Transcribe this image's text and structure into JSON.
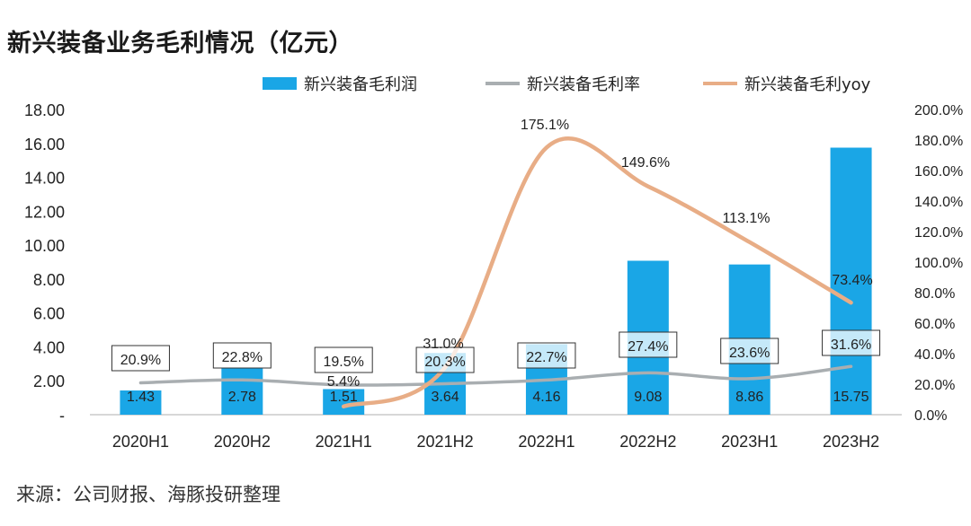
{
  "title": "新兴装备业务毛利情况（亿元）",
  "source": "来源：公司财报、海豚投研整理",
  "colors": {
    "bar": "#1aa6e6",
    "margin_line": "#a9aeb1",
    "yoy_line": "#e8ad86"
  },
  "chart_data": {
    "type": "bar",
    "categories": [
      "2020H1",
      "2020H2",
      "2021H1",
      "2021H2",
      "2022H1",
      "2022H2",
      "2023H1",
      "2023H2"
    ],
    "y_left": {
      "ylim": [
        0,
        18
      ],
      "ticks": [
        "-",
        "2.00",
        "4.00",
        "6.00",
        "8.00",
        "10.00",
        "12.00",
        "14.00",
        "16.00",
        "18.00"
      ]
    },
    "y_right": {
      "ylim": [
        0,
        200
      ],
      "ticks": [
        "0.0%",
        "20.0%",
        "40.0%",
        "60.0%",
        "80.0%",
        "100.0%",
        "120.0%",
        "140.0%",
        "160.0%",
        "180.0%",
        "200.0%"
      ]
    },
    "series": [
      {
        "name": "新兴装备毛利润",
        "kind": "bar",
        "axis": "left",
        "values": [
          1.43,
          2.78,
          1.51,
          3.64,
          4.16,
          9.08,
          8.86,
          15.75
        ],
        "labels": [
          "1.43",
          "2.78",
          "1.51",
          "3.64",
          "4.16",
          "9.08",
          "8.86",
          "15.75"
        ]
      },
      {
        "name": "新兴装备毛利率",
        "kind": "line",
        "axis": "right",
        "values": [
          20.9,
          22.8,
          19.5,
          20.3,
          22.7,
          27.4,
          23.6,
          31.6
        ],
        "labels": [
          "20.9%",
          "22.8%",
          "19.5%",
          "20.3%",
          "22.7%",
          "27.4%",
          "23.6%",
          "31.6%"
        ]
      },
      {
        "name": "新兴装备毛利yoy",
        "kind": "line",
        "axis": "right",
        "values": [
          null,
          null,
          5.4,
          31.0,
          175.1,
          149.6,
          113.1,
          73.4
        ],
        "labels": [
          "",
          "",
          "5.4%",
          "31.0%",
          "175.1%",
          "149.6%",
          "113.1%",
          "73.4%"
        ]
      }
    ],
    "legend": [
      "新兴装备毛利润",
      "新兴装备毛利率",
      "新兴装备毛利yoy"
    ],
    "legend_position": "top",
    "grid": false
  }
}
